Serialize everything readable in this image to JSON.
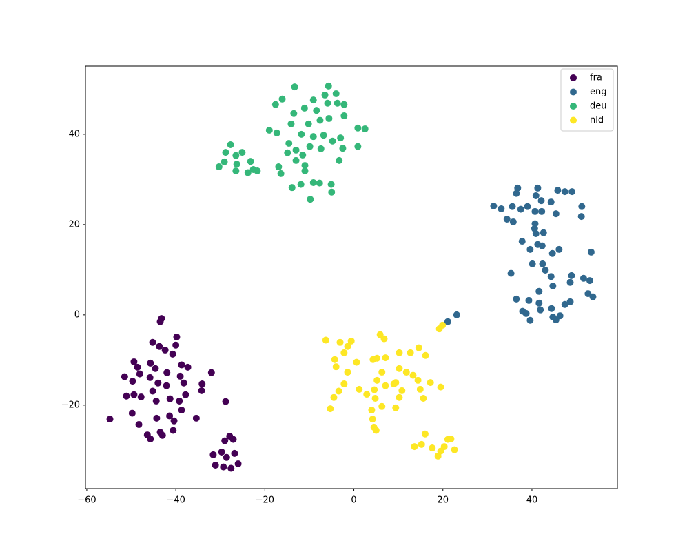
{
  "chart_data": {
    "type": "scatter",
    "xlim": [
      -60.3,
      59.2
    ],
    "ylim": [
      -38.5,
      55.1
    ],
    "xticks": [
      {
        "value": -60,
        "label": "−60"
      },
      {
        "value": -40,
        "label": "−40"
      },
      {
        "value": -20,
        "label": "−20"
      },
      0,
      20,
      40
    ],
    "yticks": [
      {
        "value": -20,
        "label": "−20"
      },
      0,
      20,
      40
    ],
    "legend": "upper right",
    "series": [
      {
        "name": "fra",
        "color": "#440154",
        "x": [
          -54.8,
          -43.2,
          -43.5,
          -45.2,
          -43.7,
          -42.4,
          -39.8,
          -40.0,
          -40.7,
          -49.4,
          -48.6,
          -48.1,
          -51.5,
          -49.7,
          -51.1,
          -49.4,
          -47.8,
          -45.7,
          -44.6,
          -45.8,
          -44.0,
          -42.0,
          -42.1,
          -38.7,
          -39.0,
          -38.2,
          -45.2,
          -44.4,
          -41.3,
          -39.2,
          -37.8,
          -38.7,
          -41.4,
          -44.3,
          -49.8,
          -48.3,
          -46.4,
          -45.7,
          -43.5,
          -43.0,
          -40.6,
          -40.4,
          -35.4,
          -37.3,
          -34.1,
          -32.0,
          -34.2,
          -28.8,
          -31.6,
          -29.7,
          -29.0,
          -27.9,
          -27.1,
          -31.1,
          -29.3,
          -27.6,
          -26.0,
          -26.8,
          -28.6
        ],
        "y": [
          -23.1,
          -0.8,
          -1.5,
          -6.1,
          -7.0,
          -7.8,
          -4.9,
          -6.7,
          -8.7,
          -10.4,
          -11.6,
          -13.1,
          -13.7,
          -14.7,
          -18.0,
          -17.7,
          -18.2,
          -10.7,
          -11.9,
          -13.9,
          -15.1,
          -12.8,
          -15.7,
          -11.1,
          -13.6,
          -15.1,
          -16.9,
          -19.1,
          -18.6,
          -19.1,
          -17.7,
          -21.1,
          -22.4,
          -22.9,
          -21.8,
          -24.3,
          -26.6,
          -27.5,
          -26.0,
          -26.7,
          -25.6,
          -23.5,
          -22.9,
          -11.6,
          -15.3,
          -12.8,
          -16.8,
          -19.2,
          -31.0,
          -30.4,
          -27.9,
          -26.9,
          -27.6,
          -33.3,
          -33.7,
          -34.0,
          -33.0,
          -30.7,
          -31.6
        ]
      },
      {
        "name": "eng",
        "color": "#31688e",
        "x": [
          21.1,
          23.1,
          31.4,
          33.1,
          34.4,
          35.6,
          37.5,
          39.0,
          36.5,
          36.8,
          41.3,
          40.9,
          42.1,
          44.3,
          45.8,
          47.4,
          49.0,
          51.2,
          51.1,
          45.4,
          40.7,
          42.2,
          35.8,
          40.6,
          40.7,
          40.9,
          42.6,
          37.8,
          41.3,
          42.3,
          39.6,
          44.6,
          46.1,
          40.1,
          42.4,
          43.0,
          44.3,
          44.7,
          41.6,
          35.3,
          53.3,
          48.9,
          48.6,
          51.6,
          53.0,
          52.6,
          53.7,
          36.5,
          39.3,
          41.6,
          37.9,
          38.7,
          39.6,
          41.9,
          44.4,
          44.7,
          45.4,
          46.3,
          47.4,
          48.6
        ],
        "y": [
          -1.5,
          0.0,
          24.1,
          23.5,
          21.2,
          24.0,
          23.4,
          24.0,
          26.9,
          28.1,
          28.1,
          26.4,
          25.3,
          25.0,
          27.6,
          27.3,
          27.3,
          24.0,
          21.8,
          22.4,
          22.9,
          22.9,
          20.6,
          19.1,
          20.2,
          18.0,
          18.2,
          16.3,
          15.6,
          15.3,
          14.5,
          13.6,
          14.5,
          11.3,
          11.3,
          9.9,
          8.5,
          6.4,
          5.2,
          9.2,
          13.9,
          8.7,
          7.2,
          8.1,
          7.6,
          4.7,
          4.0,
          3.5,
          3.2,
          2.6,
          0.8,
          0.3,
          -1.2,
          1.1,
          1.4,
          -0.5,
          -1.1,
          -0.2,
          2.3,
          2.9
        ]
      },
      {
        "name": "deu",
        "color": "#35b779",
        "x": [
          -5.7,
          -13.3,
          -4.0,
          -6.5,
          -9.1,
          -3.7,
          -2.2,
          -5.9,
          -8.4,
          -11.1,
          -16.1,
          -17.6,
          -13.5,
          -2.2,
          -5.6,
          -7.6,
          -10.2,
          -14.1,
          -19.0,
          -17.3,
          -11.8,
          -9.1,
          -6.8,
          -3.0,
          0.9,
          2.5,
          -4.8,
          -14.6,
          -9.9,
          -7.4,
          -2.5,
          0.9,
          -13.0,
          -14.9,
          -11.5,
          -13.0,
          -3.3,
          -16.9,
          -11.0,
          -16.4,
          -11.0,
          -13.9,
          -11.9,
          -9.1,
          -7.7,
          -5.1,
          -5.0,
          -9.8,
          -27.7,
          -28.8,
          -26.5,
          -25.1,
          -29.1,
          -30.3,
          -26.3,
          -26.5,
          -23.2,
          -22.6,
          -21.7,
          -23.8
        ],
        "y": [
          50.7,
          50.5,
          49.0,
          48.7,
          47.6,
          46.9,
          46.6,
          46.9,
          45.3,
          45.8,
          47.8,
          46.6,
          44.6,
          44.1,
          43.5,
          43.1,
          42.3,
          42.3,
          40.9,
          40.3,
          40.0,
          39.5,
          39.8,
          39.2,
          41.4,
          41.2,
          38.5,
          38.0,
          37.3,
          36.8,
          36.9,
          37.3,
          36.5,
          35.9,
          35.4,
          34.2,
          34.2,
          32.8,
          33.1,
          31.3,
          31.9,
          28.2,
          28.9,
          29.3,
          29.2,
          28.9,
          27.2,
          25.6,
          37.7,
          36.0,
          35.3,
          36.0,
          33.9,
          32.8,
          33.4,
          31.9,
          34.0,
          32.2,
          31.9,
          31.5
        ]
      },
      {
        "name": "nld",
        "color": "#fde725",
        "x": [
          19.2,
          19.9,
          -6.3,
          -3.1,
          -0.6,
          -1.4,
          5.9,
          6.8,
          -4.3,
          -4.0,
          -2.2,
          0.6,
          -1.4,
          4.3,
          5.2,
          7.1,
          10.2,
          12.7,
          14.6,
          16.1,
          -2.2,
          -3.4,
          -4.5,
          -5.3,
          1.2,
          2.9,
          4.6,
          5.2,
          6.3,
          7.1,
          4.8,
          4.0,
          4.2,
          4.5,
          5.0,
          6.3,
          9.4,
          10.2,
          10.8,
          9.4,
          10.2,
          11.8,
          13.3,
          14.4,
          14.9,
          15.6,
          17.2,
          19.5,
          9.0,
          13.6,
          15.2,
          16.0,
          17.6,
          18.9,
          19.5,
          21.1,
          21.8,
          22.6,
          20.3
        ],
        "y": [
          -3.1,
          -2.3,
          -5.6,
          -6.1,
          -5.8,
          -7.0,
          -4.4,
          -5.3,
          -9.9,
          -11.5,
          -8.4,
          -10.5,
          -12.7,
          -9.9,
          -9.6,
          -9.5,
          -8.4,
          -8.4,
          -7.3,
          -9.0,
          -15.3,
          -16.9,
          -18.3,
          -20.8,
          -16.5,
          -17.6,
          -16.6,
          -14.5,
          -12.7,
          -15.7,
          -18.5,
          -21.1,
          -23.1,
          -24.9,
          -25.6,
          -20.3,
          -20.6,
          -18.3,
          -16.8,
          -15.0,
          -11.9,
          -12.7,
          -13.4,
          -14.5,
          -16.5,
          -18.5,
          -15.0,
          -16.0,
          -15.3,
          -29.2,
          -28.7,
          -26.4,
          -29.5,
          -31.3,
          -30.2,
          -27.6,
          -27.5,
          -29.9,
          -29.2
        ]
      }
    ]
  }
}
